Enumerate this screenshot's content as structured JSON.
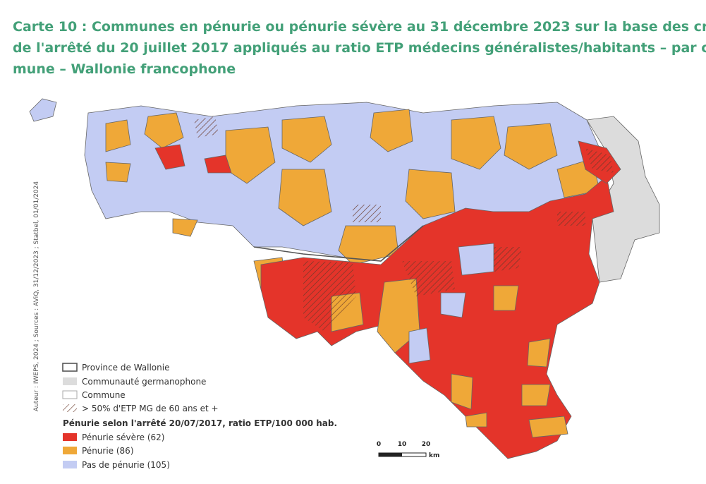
{
  "header": {
    "title_lines": [
      "Carte 10 : Communes en pénurie ou pénurie sévère au 31 décembre 2023 sur la base des critères",
      "de l'arrêté du 20 juillet 2017 appliqués au ratio ETP médecins généralistes/habitants – par com-",
      "mune – Wallonie francophone"
    ]
  },
  "map": {
    "source": "Auteur : IWEPS, 2024 ; Sources : AViQ, 31/12/2023 ; Statbel, 01/01/2024",
    "legend": {
      "boundaries": [
        "Province de Wallonie",
        "Communauté germanophone",
        "Commune",
        "> 50% d'ETP MG de 60 ans et +"
      ],
      "heading": "Pénurie selon l'arrêté 20/07/2017, ratio ETP/100 000 hab.",
      "categories": [
        "Pénurie sévère (62)",
        "Pénurie (86)",
        "Pas de pénurie (105)"
      ]
    },
    "scale": {
      "labels": [
        "0",
        "10",
        "20"
      ],
      "unit": "km"
    }
  }
}
